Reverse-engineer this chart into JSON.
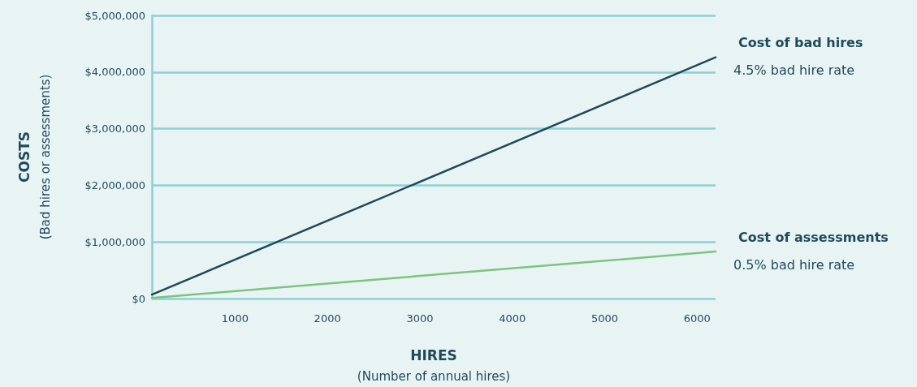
{
  "chart_data": {
    "type": "line",
    "xlabel": "HIRES\n(Number of annual hires)",
    "ylabel": "COSTS\n(Bad hires or assessments)",
    "x": [
      100,
      6200
    ],
    "series": [
      {
        "name": "Cost of bad hires",
        "color": "#1f4a5c",
        "values": [
          70000,
          4260000
        ]
      },
      {
        "name": "Cost of assessments",
        "color": "#7cc47f",
        "values": [
          10000,
          830000
        ]
      }
    ],
    "annotations": [
      {
        "text": "4.5% bad hire rate",
        "x": 6200,
        "y": 4260000
      },
      {
        "text": "0.5% bad hire rate",
        "x": 6200,
        "y": 830000
      }
    ],
    "xlim": [
      100,
      6200
    ],
    "xticks": [
      1000,
      2000,
      3000,
      4000,
      5000,
      6000
    ],
    "ylim": [
      0,
      5000000
    ],
    "yticks": [
      {
        "value": 0,
        "label": "$0"
      },
      {
        "value": 1000000,
        "label": "$1,000,000"
      },
      {
        "value": 2000000,
        "label": "$2,000,000"
      },
      {
        "value": 3000000,
        "label": "$3,000,000"
      },
      {
        "value": 4000000,
        "label": "$4,000,000"
      },
      {
        "value": 5000000,
        "label": "$5,000,000"
      }
    ],
    "grid": "y",
    "legend": false,
    "marker": "none",
    "line_style": "solid"
  }
}
